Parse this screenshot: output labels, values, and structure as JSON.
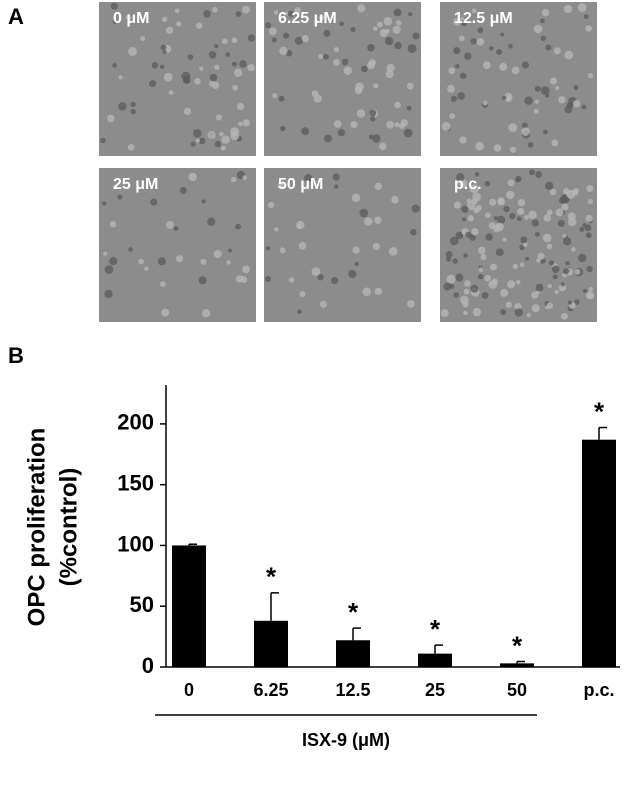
{
  "panel_labels": [
    "A",
    "B"
  ],
  "micrographs": [
    {
      "label": "0 μM"
    },
    {
      "label": "6.25 μM"
    },
    {
      "label": "12.5 μM"
    },
    {
      "label": "25 μM"
    },
    {
      "label": "50 μM"
    },
    {
      "label": "p.c."
    }
  ],
  "chart_data": {
    "type": "bar",
    "ylabel": [
      "OPC proliferation",
      "(%control)"
    ],
    "xlabel": "ISX-9 (μM)",
    "categories": [
      "0",
      "6.25",
      "12.5",
      "25",
      "50",
      "p.c."
    ],
    "values": [
      100,
      38,
      22,
      11,
      3,
      187
    ],
    "errors": [
      1,
      23,
      10,
      7,
      1.5,
      10
    ],
    "significance": [
      null,
      "*",
      "*",
      "*",
      "*",
      "*"
    ],
    "color": "#000000",
    "ylim": [
      0,
      232
    ],
    "yticks": [
      0,
      50,
      100,
      150,
      200
    ]
  }
}
